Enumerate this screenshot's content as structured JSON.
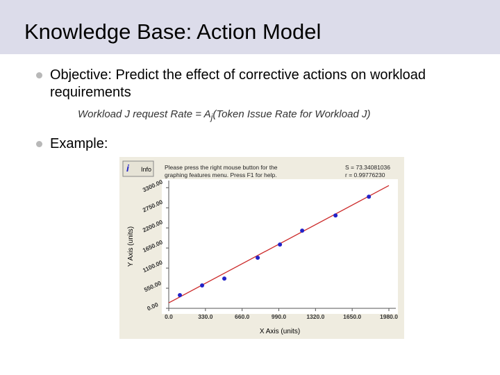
{
  "header": {
    "title": "Knowledge Base: Action Model"
  },
  "bullets": [
    {
      "label": "Objective:",
      "text": "Predict the effect of corrective actions on workload requirements"
    },
    {
      "text": "Example:"
    }
  ],
  "formula": {
    "before": "Workload J request Rate = A",
    "subscript": "j",
    "after": "(Token Issue Rate for Workload J)"
  },
  "chart_data": {
    "type": "scatter",
    "info_button": "Info",
    "help": [
      "Please press the right mouse button for the",
      "graphing features menu.  Press F1 for help."
    ],
    "stats": [
      "S = 73.34081036",
      "r = 0.99776230"
    ],
    "xlabel": "X Axis (units)",
    "ylabel": "Y Axis (units)",
    "xlim": [
      0,
      1980
    ],
    "ylim": [
      0,
      3400
    ],
    "xticks": [
      {
        "value": 0,
        "label": "0.0"
      },
      {
        "value": 330,
        "label": "330.0"
      },
      {
        "value": 660,
        "label": "660.0"
      },
      {
        "value": 990,
        "label": "990.0"
      },
      {
        "value": 1320,
        "label": "1320.0"
      },
      {
        "value": 1650,
        "label": "1650.0"
      },
      {
        "value": 1980,
        "label": "1980.0"
      }
    ],
    "yticks": [
      {
        "value": 0,
        "label": "0.00"
      },
      {
        "value": 550,
        "label": "550.00"
      },
      {
        "value": 1100,
        "label": "1100.00"
      },
      {
        "value": 1650,
        "label": "1650.00"
      },
      {
        "value": 2200,
        "label": "2200.00"
      },
      {
        "value": 2750,
        "label": "2750.00"
      },
      {
        "value": 3300,
        "label": "3300.00"
      }
    ],
    "series": [
      {
        "color": "#2323c8",
        "x": [
          100,
          300,
          500,
          800,
          1000,
          1200,
          1500,
          1800
        ],
        "values": [
          360,
          626,
          815,
          1384,
          1745,
          2124,
          2541,
          3053
        ]
      }
    ],
    "fit": {
      "color": "#cc2a2a",
      "x": [
        0,
        1980
      ],
      "values": [
        150,
        3358
      ]
    }
  }
}
